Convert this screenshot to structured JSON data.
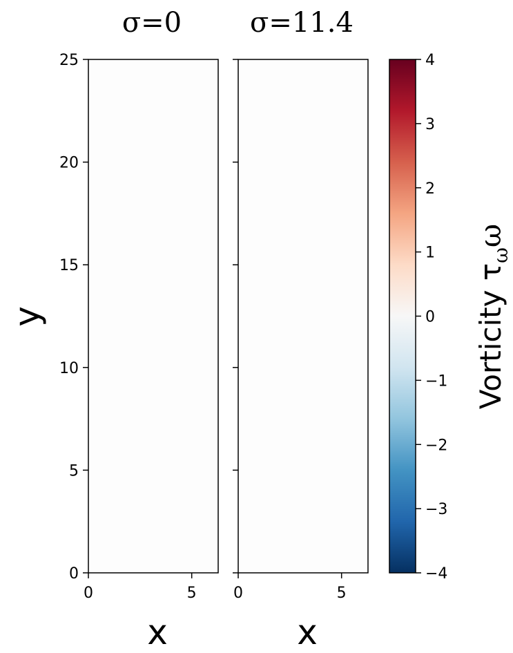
{
  "chart_data": {
    "type": "heatmap",
    "panels": [
      {
        "title": "σ=0",
        "xlabel": "x",
        "xlim": [
          0,
          6.28
        ],
        "ylim": [
          0,
          25
        ],
        "xticks": [
          0,
          5
        ],
        "xtick_labels": [
          "0",
          "5"
        ],
        "yticks": [
          0,
          5,
          10,
          15,
          20,
          25
        ],
        "ytick_labels": [
          "0",
          "5",
          "10",
          "15",
          "20",
          "25"
        ]
      },
      {
        "title": "σ=11.4",
        "xlabel": "x",
        "xlim": [
          0,
          6.28
        ],
        "ylim": [
          0,
          25
        ],
        "xticks": [
          0,
          5
        ],
        "xtick_labels": [
          "0",
          "5"
        ],
        "yticks": [
          0,
          5,
          10,
          15,
          20,
          25
        ]
      }
    ],
    "ylabel": "y",
    "colorbar": {
      "label": "Vorticity τ",
      "label_sub": "ω",
      "label_tail": "ω",
      "colormap": "RdBu_r",
      "range": [
        -4,
        4
      ],
      "ticks": [
        4,
        3,
        2,
        1,
        0,
        -1,
        -2,
        -3,
        -4
      ],
      "tick_labels": [
        "4",
        "3",
        "2",
        "1",
        "0",
        "−1",
        "−2",
        "−3",
        "−4"
      ],
      "colors": [
        "#053061",
        "#2166ac",
        "#4393c3",
        "#92c5de",
        "#d1e5f0",
        "#f7f7f7",
        "#fddbc7",
        "#f4a582",
        "#d6604d",
        "#b2182b",
        "#67001f"
      ]
    },
    "grid": false
  }
}
